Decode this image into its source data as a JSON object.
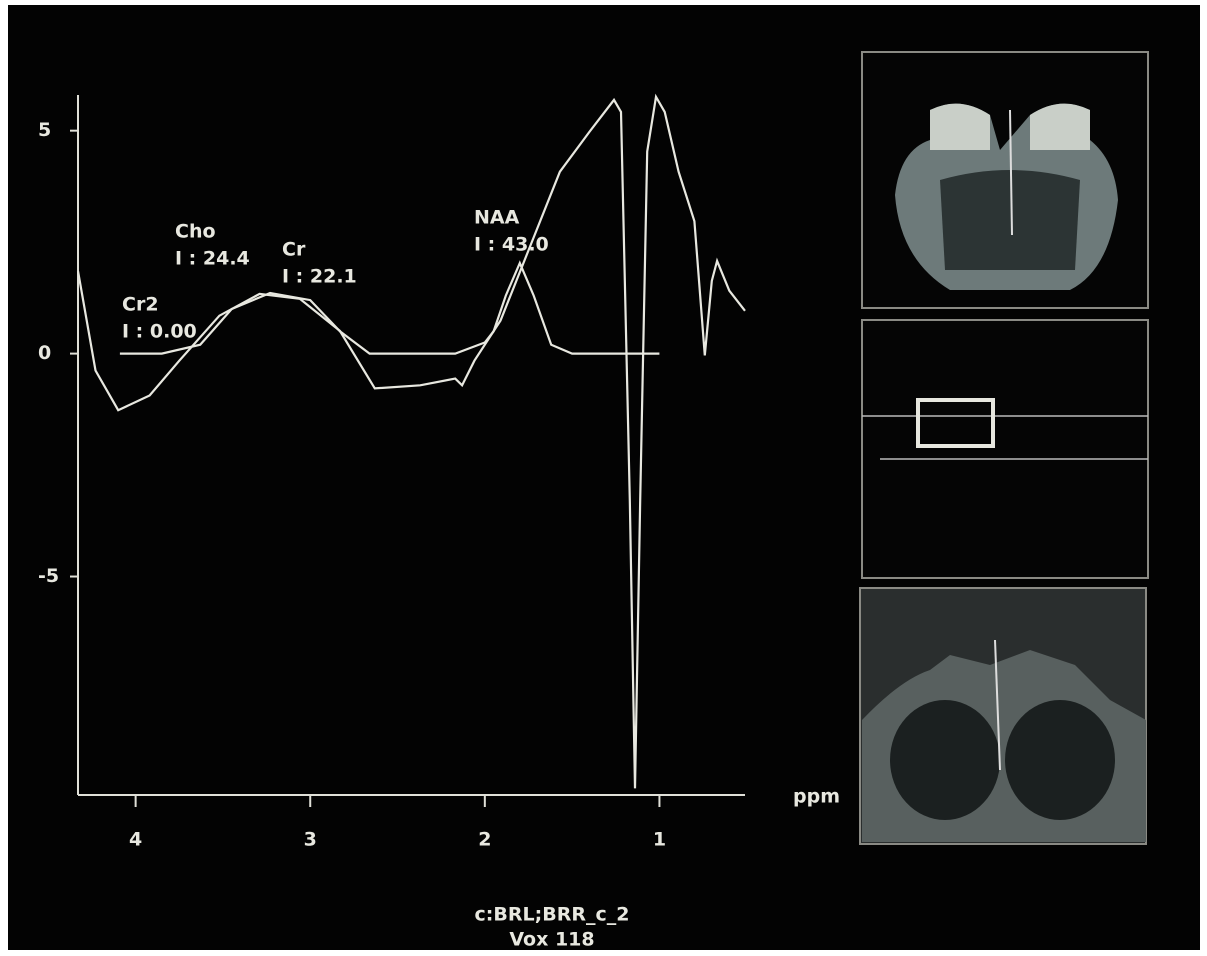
{
  "chart_data": {
    "type": "line",
    "x_label": "ppm",
    "xlim": [
      4.33,
      0.51
    ],
    "xticks": [
      4,
      3,
      2,
      1
    ],
    "ylim": [
      -9.9,
      5.8
    ],
    "yticks": [
      5,
      0,
      -5
    ],
    "series": [
      {
        "color": "#e8e8e0",
        "x": [
          4.33,
          4.23,
          4.1,
          3.92,
          3.75,
          3.52,
          3.29,
          3.06,
          2.83,
          2.63,
          2.37,
          2.17,
          2.13,
          2.06,
          1.91,
          1.74,
          1.57,
          1.4,
          1.26,
          1.22,
          1.17,
          1.14,
          1.11,
          1.07,
          1.02,
          0.97,
          0.89,
          0.8,
          0.74,
          0.7,
          0.67,
          0.6,
          0.51
        ],
        "values": [
          1.85,
          -0.38,
          -1.27,
          -0.94,
          -0.16,
          0.85,
          1.34,
          1.23,
          0.51,
          -0.78,
          -0.71,
          -0.56,
          -0.71,
          -0.16,
          0.74,
          2.41,
          4.08,
          4.98,
          5.69,
          5.42,
          -3.28,
          -9.75,
          -3.28,
          4.53,
          5.76,
          5.42,
          4.08,
          2.97,
          -0.04,
          1.63,
          2.08,
          1.41,
          0.96
        ]
      },
      {
        "color": "#e8e8e0",
        "x": [
          4.09,
          3.85,
          3.63,
          3.45,
          3.23,
          3.0,
          2.83,
          2.66,
          2.17,
          2.0,
          1.95,
          1.88,
          1.8,
          1.72,
          1.62,
          1.5,
          1.0
        ],
        "values": [
          0,
          0,
          0.2,
          1.0,
          1.36,
          1.2,
          0.5,
          0,
          0,
          0.25,
          0.5,
          1.3,
          2.03,
          1.3,
          0.2,
          0,
          0
        ]
      }
    ],
    "annotations": [
      {
        "name": "Cr2",
        "integral": "I : 0.00"
      },
      {
        "name": "Cho",
        "integral": "I : 24.4"
      },
      {
        "name": "Cr",
        "integral": "I : 22.1"
      },
      {
        "name": "NAA",
        "integral": "I : 43.0"
      }
    ],
    "caption": [
      "c:BRL;BRR_c_2",
      "Vox 118"
    ]
  }
}
